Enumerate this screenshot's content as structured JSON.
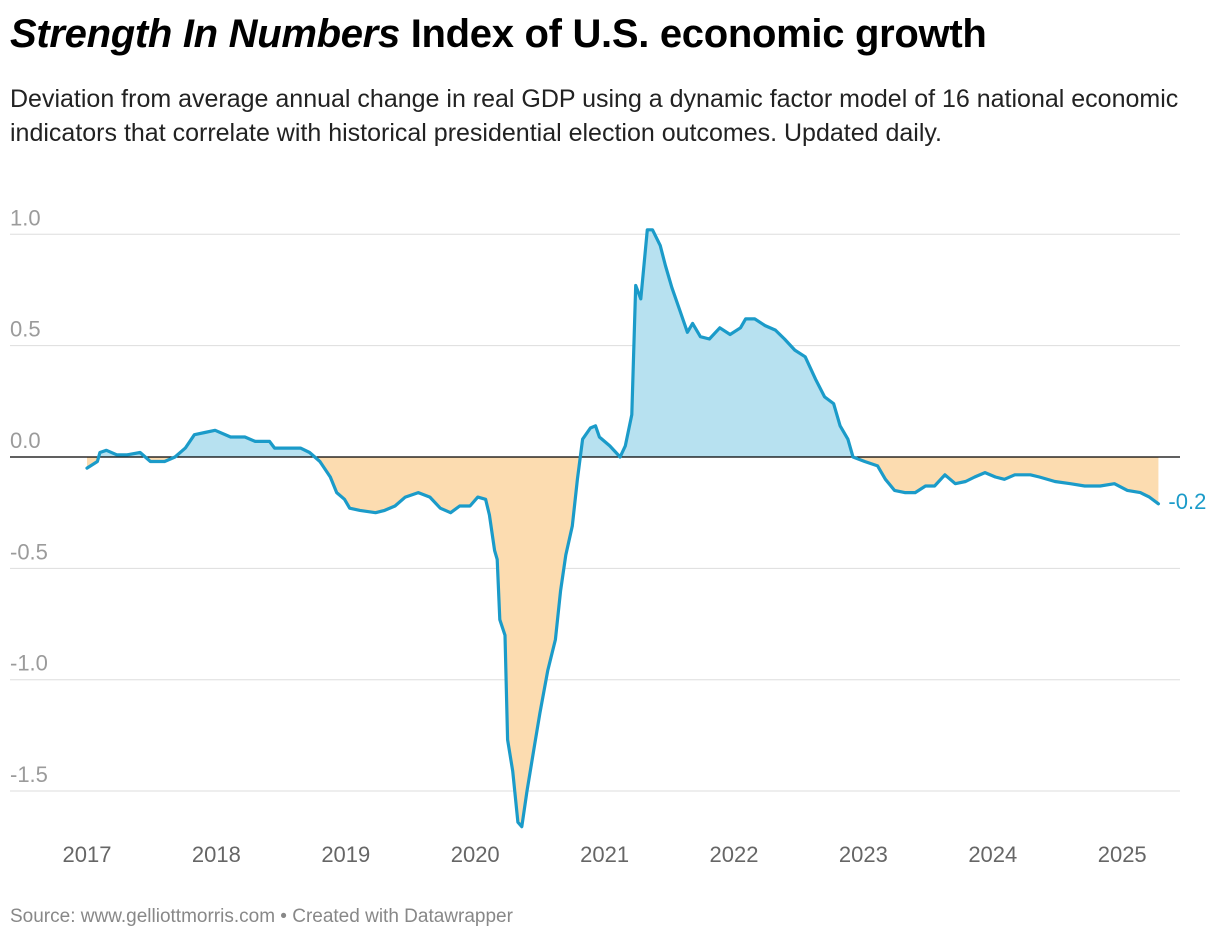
{
  "header": {
    "title_italic": "Strength In Numbers",
    "title_rest": " Index of U.S. economic growth",
    "subtitle": "Deviation from average annual change in real GDP using a dynamic factor model of 16 national economic indicators that correlate with historical presidential election outcomes. Updated daily."
  },
  "footer": {
    "source": "Source: www.gelliottmorris.com • Created with Datawrapper"
  },
  "colors": {
    "line": "#1b9bc9",
    "positive_fill": "#b7e1f0",
    "negative_fill": "#fcdcb0",
    "zero_line": "#000000",
    "grid": "#dddddd"
  },
  "chart_data": {
    "type": "area",
    "title": "Strength In Numbers Index of U.S. economic growth",
    "xlabel": "",
    "ylabel": "",
    "xlim": [
      2017,
      2025.45
    ],
    "ylim": [
      -1.7,
      1.05
    ],
    "yticks": [
      1.0,
      0.5,
      0.0,
      -0.5,
      -1.0,
      -1.5
    ],
    "ytick_labels": [
      "1.0",
      "0.5",
      "0.0",
      "-0.5",
      "-1.0",
      "-1.5"
    ],
    "xticks": [
      2017,
      2018,
      2019,
      2020,
      2021,
      2022,
      2023,
      2024,
      2025
    ],
    "xtick_labels": [
      "2017",
      "2018",
      "2019",
      "2020",
      "2021",
      "2022",
      "2023",
      "2024",
      "2025"
    ],
    "grid": true,
    "last_value_label": "-0.2",
    "x": [
      2017.0,
      2017.08,
      2017.1,
      2017.15,
      2017.23,
      2017.31,
      2017.41,
      2017.49,
      2017.6,
      2017.68,
      2017.76,
      2017.83,
      2017.91,
      2017.99,
      2018.11,
      2018.22,
      2018.3,
      2018.41,
      2018.45,
      2018.57,
      2018.65,
      2018.72,
      2018.8,
      2018.88,
      2018.93,
      2018.99,
      2019.03,
      2019.11,
      2019.23,
      2019.3,
      2019.38,
      2019.46,
      2019.56,
      2019.65,
      2019.73,
      2019.81,
      2019.88,
      2019.96,
      2020.02,
      2020.08,
      2020.11,
      2020.15,
      2020.17,
      2020.19,
      2020.23,
      2020.25,
      2020.29,
      2020.33,
      2020.36,
      2020.4,
      2020.46,
      2020.5,
      2020.56,
      2020.62,
      2020.66,
      2020.7,
      2020.75,
      2020.79,
      2020.83,
      2020.89,
      2020.93,
      2020.96,
      2021.04,
      2021.12,
      2021.16,
      2021.21,
      2021.24,
      2021.28,
      2021.33,
      2021.37,
      2021.43,
      2021.47,
      2021.52,
      2021.58,
      2021.64,
      2021.68,
      2021.74,
      2021.81,
      2021.89,
      2021.97,
      2022.05,
      2022.09,
      2022.16,
      2022.24,
      2022.32,
      2022.39,
      2022.47,
      2022.55,
      2022.63,
      2022.7,
      2022.77,
      2022.82,
      2022.88,
      2022.92,
      2023.01,
      2023.11,
      2023.17,
      2023.24,
      2023.32,
      2023.4,
      2023.48,
      2023.55,
      2023.63,
      2023.71,
      2023.79,
      2023.86,
      2023.94,
      2024.02,
      2024.09,
      2024.17,
      2024.29,
      2024.36,
      2024.48,
      2024.6,
      2024.71,
      2024.83,
      2024.94,
      2025.04,
      2025.14,
      2025.21,
      2025.28
    ],
    "values": [
      -0.05,
      -0.02,
      0.02,
      0.03,
      0.01,
      0.01,
      0.02,
      -0.02,
      -0.02,
      0.0,
      0.04,
      0.1,
      0.11,
      0.12,
      0.09,
      0.09,
      0.07,
      0.07,
      0.04,
      0.04,
      0.04,
      0.02,
      -0.02,
      -0.09,
      -0.16,
      -0.19,
      -0.23,
      -0.24,
      -0.25,
      -0.24,
      -0.22,
      -0.18,
      -0.16,
      -0.18,
      -0.23,
      -0.25,
      -0.22,
      -0.22,
      -0.18,
      -0.19,
      -0.26,
      -0.42,
      -0.46,
      -0.73,
      -0.8,
      -1.27,
      -1.41,
      -1.64,
      -1.66,
      -1.5,
      -1.29,
      -1.15,
      -0.96,
      -0.82,
      -0.6,
      -0.44,
      -0.31,
      -0.1,
      0.08,
      0.13,
      0.14,
      0.09,
      0.05,
      0.0,
      0.05,
      0.19,
      0.77,
      0.71,
      1.02,
      1.02,
      0.95,
      0.86,
      0.76,
      0.66,
      0.56,
      0.6,
      0.54,
      0.53,
      0.58,
      0.55,
      0.58,
      0.62,
      0.62,
      0.59,
      0.57,
      0.53,
      0.48,
      0.45,
      0.35,
      0.27,
      0.24,
      0.14,
      0.08,
      0.0,
      -0.02,
      -0.04,
      -0.1,
      -0.15,
      -0.16,
      -0.16,
      -0.13,
      -0.13,
      -0.08,
      -0.12,
      -0.11,
      -0.09,
      -0.07,
      -0.09,
      -0.1,
      -0.08,
      -0.08,
      -0.09,
      -0.11,
      -0.12,
      -0.13,
      -0.13,
      -0.12,
      -0.15,
      -0.16,
      -0.18,
      -0.21
    ]
  }
}
